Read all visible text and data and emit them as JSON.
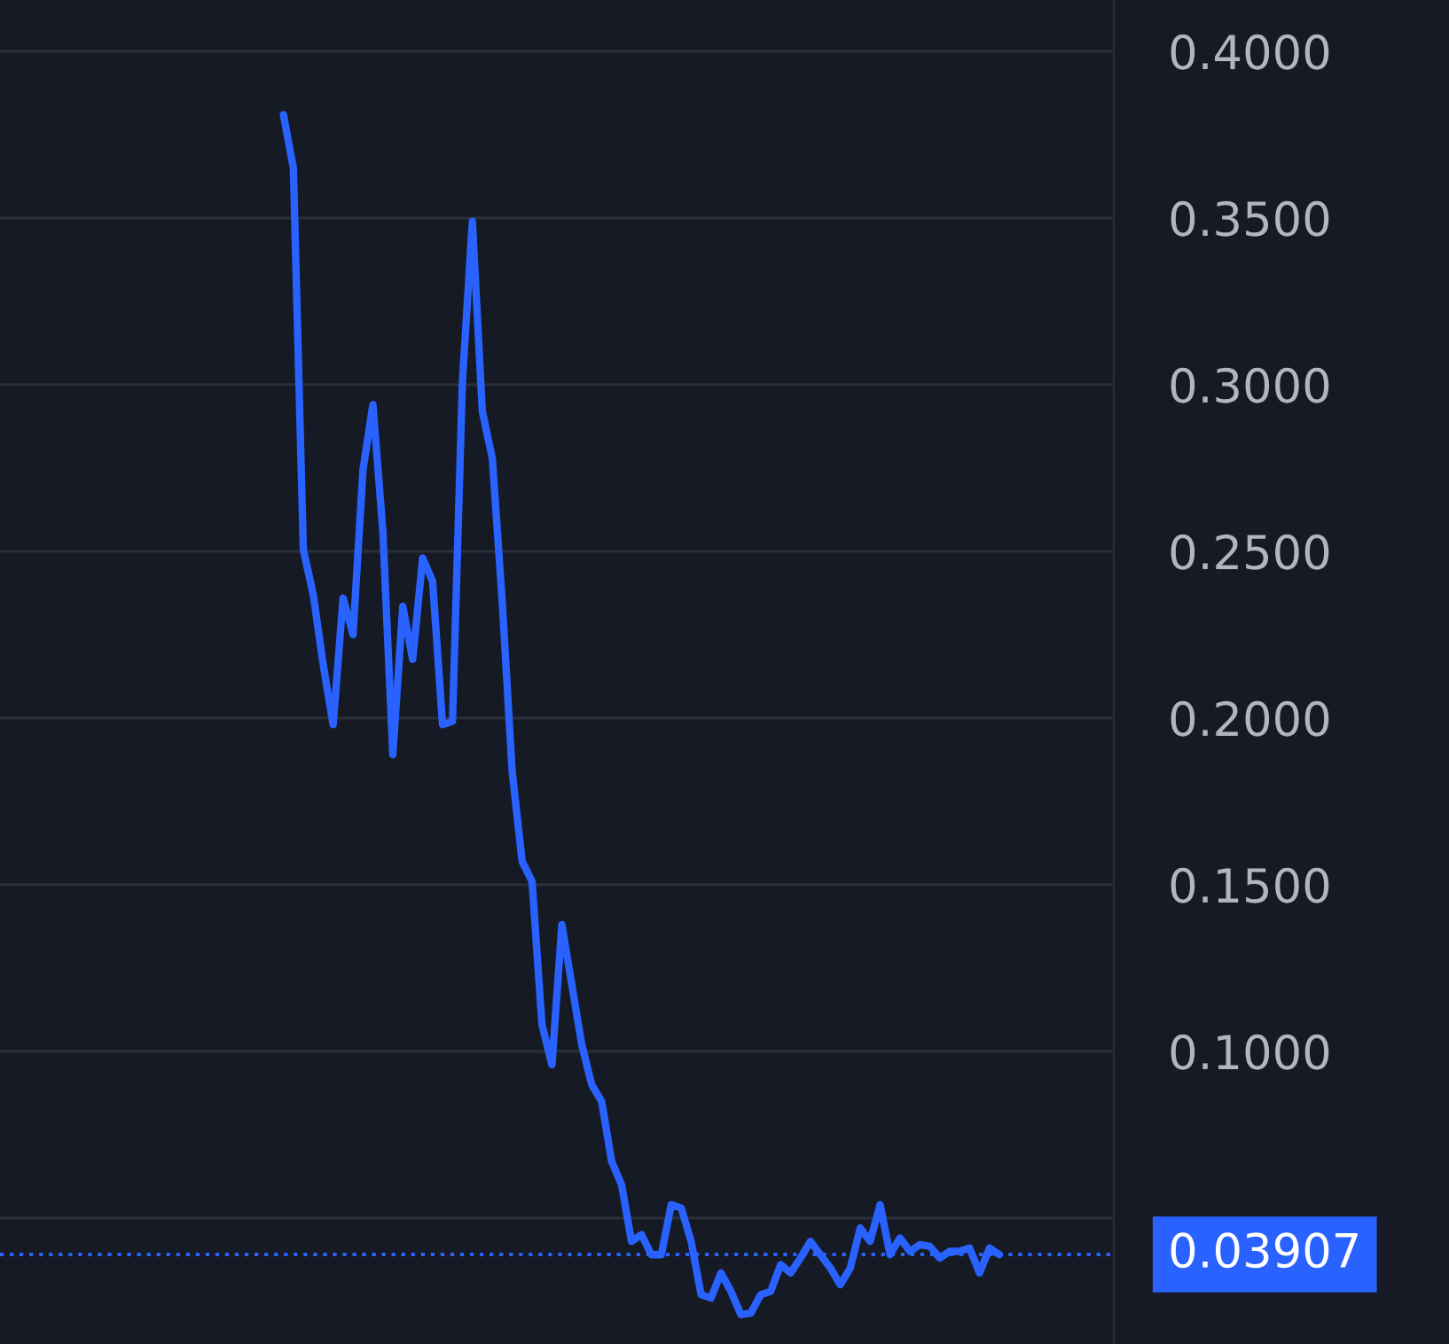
{
  "chart_data": {
    "type": "line",
    "categories": [
      null,
      null,
      null,
      null,
      null,
      null,
      null,
      null,
      null,
      null,
      null,
      null,
      null,
      null,
      null,
      null,
      null,
      null,
      null,
      null,
      null,
      null,
      null,
      null,
      null,
      null,
      null,
      null,
      null,
      null,
      null,
      null,
      null,
      null,
      null,
      null,
      null,
      null,
      null,
      null,
      null,
      null,
      null,
      null,
      null,
      null,
      null,
      null,
      null,
      null,
      null,
      null,
      null,
      null,
      null,
      null,
      null,
      null,
      null,
      null,
      null,
      null,
      null,
      null,
      null,
      null,
      null,
      null,
      null,
      null,
      null,
      null,
      null,
      null,
      null,
      null,
      null,
      null,
      null,
      null,
      null,
      null,
      null,
      null,
      null,
      null,
      null,
      null,
      null,
      null,
      null,
      null,
      null,
      null,
      null,
      null,
      null,
      null,
      null,
      null,
      null,
      null,
      null,
      null,
      null,
      null,
      null,
      null,
      null,
      null,
      null,
      null
    ],
    "series": [
      {
        "color": "#2962ff",
        "values": [
          null,
          null,
          null,
          null,
          null,
          null,
          null,
          null,
          null,
          null,
          null,
          null,
          null,
          null,
          null,
          null,
          null,
          null,
          null,
          null,
          null,
          null,
          null,
          null,
          null,
          null,
          null,
          null,
          0.381,
          0.365,
          0.2505,
          0.237,
          0.216,
          0.198,
          0.236,
          0.225,
          0.2745,
          0.294,
          0.256,
          0.189,
          0.2335,
          0.2176,
          0.248,
          0.241,
          0.198,
          0.199,
          0.301,
          0.349,
          0.292,
          0.278,
          0.235,
          0.184,
          0.157,
          0.151,
          0.108,
          0.096,
          0.138,
          0.12,
          0.102,
          0.09,
          0.085,
          0.067,
          0.06,
          0.043,
          0.045,
          0.039,
          0.039,
          0.054,
          0.053,
          0.043,
          0.027,
          0.026,
          0.0335,
          0.028,
          0.021,
          0.0215,
          0.027,
          0.028,
          0.036,
          0.0335,
          0.038,
          0.043,
          0.039,
          0.035,
          0.03,
          0.035,
          0.047,
          0.043,
          0.054,
          0.039,
          0.044,
          0.04,
          0.042,
          0.0415,
          0.038,
          0.04,
          0.04,
          0.041,
          0.0335,
          0.041,
          0.039,
          null,
          null,
          null,
          null,
          null,
          null,
          null,
          null,
          null,
          null,
          null
        ]
      }
    ],
    "ylim": [
      0.0122,
      0.4154
    ],
    "yticks": [
      {
        "value": 0.05,
        "label": null
      },
      {
        "value": 0.1,
        "label": "0.1000"
      },
      {
        "value": 0.15,
        "label": "0.1500"
      },
      {
        "value": 0.2,
        "label": "0.2000"
      },
      {
        "value": 0.25,
        "label": "0.2500"
      },
      {
        "value": 0.3,
        "label": "0.3000"
      },
      {
        "value": 0.35,
        "label": "0.3500"
      },
      {
        "value": 0.4,
        "label": "0.4000"
      }
    ],
    "grid": "y",
    "line_style": "solid",
    "ref_lines": [
      {
        "axis": "y",
        "value": 0.03907,
        "label": "0.03907",
        "color": "#2962ff",
        "line_style": "dotted"
      }
    ]
  }
}
